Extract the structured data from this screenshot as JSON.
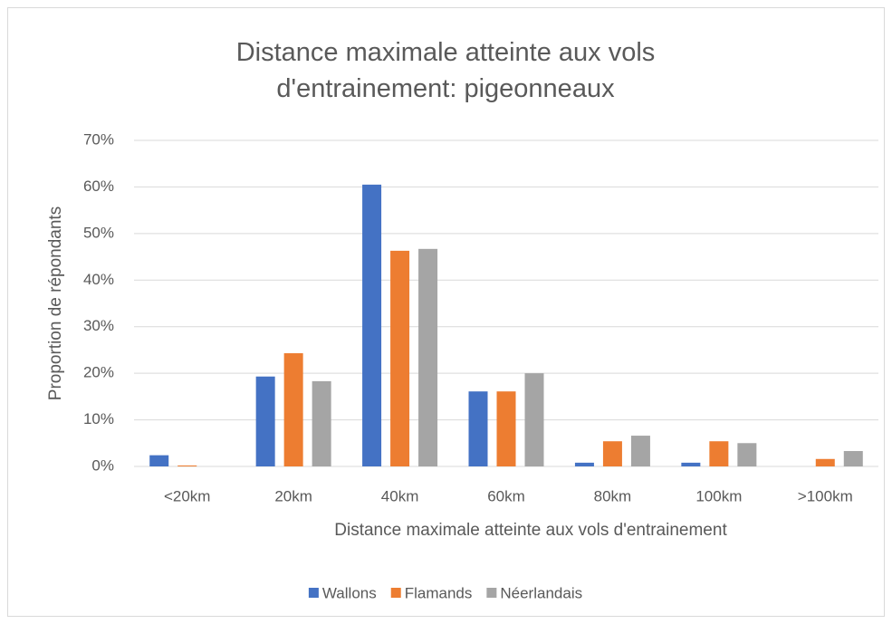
{
  "chart_data": {
    "type": "bar",
    "title": "Distance maximale atteinte aux vols d'entrainement: pigeonneaux",
    "x_label": "Distance maximale atteinte aux vols d'entrainement",
    "y_label": "Proportion de répondants",
    "categories": [
      "<20km",
      "20km",
      "40km",
      "60km",
      "80km",
      "100km",
      ">100km"
    ],
    "series": [
      {
        "name": "Wallons",
        "color": "#4472c4",
        "values": [
          2.4,
          19.3,
          60.5,
          16.1,
          0.8,
          0.8,
          0
        ]
      },
      {
        "name": "Flamands",
        "color": "#ed7d31",
        "values": [
          0.2,
          24.3,
          46.3,
          16.1,
          5.4,
          5.4,
          1.6
        ]
      },
      {
        "name": "Néerlandais",
        "color": "#a5a5a5",
        "values": [
          0,
          18.3,
          46.7,
          20,
          6.6,
          5,
          3.3
        ]
      }
    ],
    "ylim": [
      0,
      70
    ],
    "yticks": [
      {
        "value": 0,
        "label": "0%"
      },
      {
        "value": 10,
        "label": "10%"
      },
      {
        "value": 20,
        "label": "20%"
      },
      {
        "value": 30,
        "label": "30%"
      },
      {
        "value": 40,
        "label": "40%"
      },
      {
        "value": 50,
        "label": "50%"
      },
      {
        "value": 60,
        "label": "60%"
      },
      {
        "value": 70,
        "label": "70%"
      }
    ],
    "grid": true,
    "legend": "bottom"
  }
}
